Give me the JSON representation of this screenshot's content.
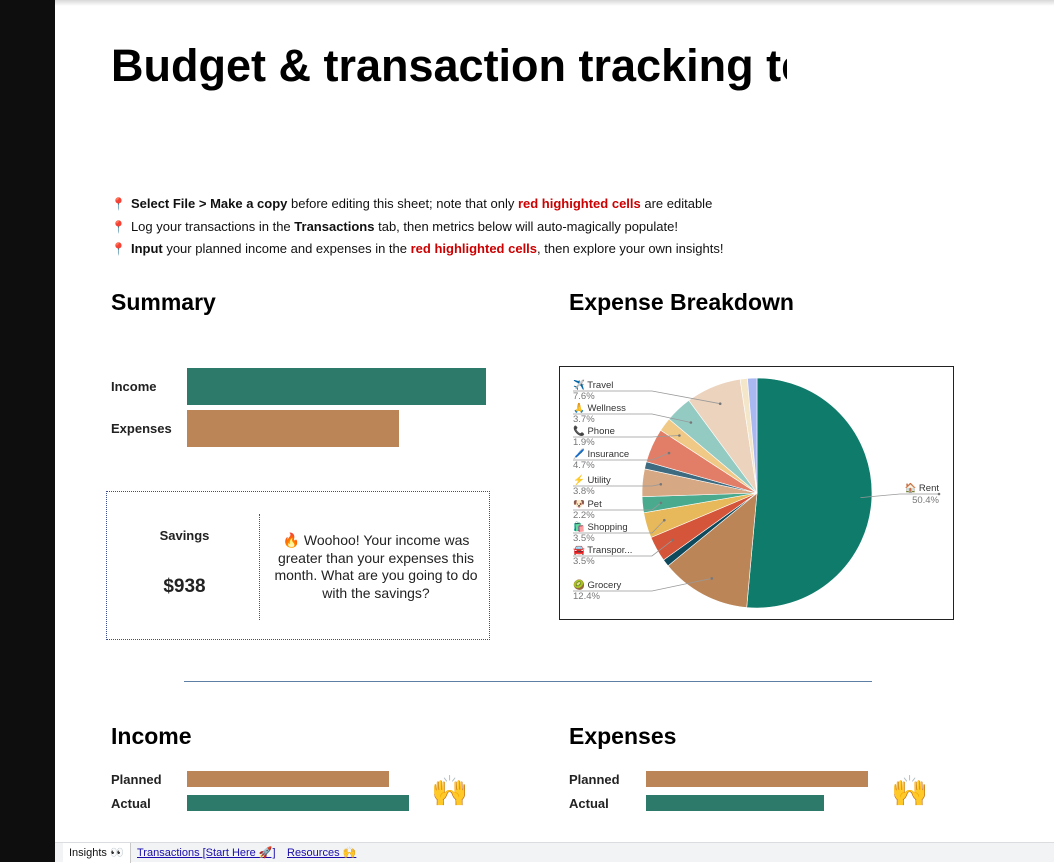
{
  "page": {
    "title": "Budget & transaction tracking template"
  },
  "instructions": {
    "line1": {
      "pin": "📍",
      "bold1": "Select File > Make a copy",
      "text1": " before editing this sheet; note that only ",
      "red": "red highighted cells",
      "text2": " are editable"
    },
    "line2": {
      "pin": "📍",
      "text1": "Log your transactions in the ",
      "bold": "Transactions",
      "text2": " tab, then metrics below will auto-magically populate!"
    },
    "line3": {
      "pin": "📍",
      "bold": "Input",
      "text1": " your planned income and expenses in the ",
      "red": "red highlighted cells",
      "text2": ", then explore your own insights!"
    }
  },
  "summary": {
    "heading": "Summary",
    "income_label": "Income",
    "expenses_label": "Expenses",
    "income_fraction": 1.0,
    "expenses_fraction": 0.71
  },
  "savings": {
    "label": "Savings",
    "value": "$938",
    "message": "🔥 Woohoo! Your income was greater than your expenses this month. What are you going to do with the savings?"
  },
  "expense_breakdown": {
    "heading": "Expense Breakdown"
  },
  "chart_data": {
    "type": "pie",
    "title": "",
    "slices": [
      {
        "label": "🏠 Rent",
        "value": 50.4,
        "pct_label": "50.4%",
        "color": "#0e7b6b"
      },
      {
        "label": "🥝 Grocery",
        "value": 12.4,
        "pct_label": "12.4%",
        "color": "#bb8558"
      },
      {
        "label": "",
        "value": 1.0,
        "pct_label": "",
        "color": "#0f4a5c"
      },
      {
        "label": "🚘 Transpor...",
        "value": 3.5,
        "pct_label": "3.5%",
        "color": "#d4553a"
      },
      {
        "label": "🛍️ Shopping",
        "value": 3.5,
        "pct_label": "3.5%",
        "color": "#e8b95a"
      },
      {
        "label": "🐶 Pet",
        "value": 2.2,
        "pct_label": "2.2%",
        "color": "#4aaa8e"
      },
      {
        "label": "⚡ Utility",
        "value": 3.8,
        "pct_label": "3.8%",
        "color": "#d6a883"
      },
      {
        "label": "",
        "value": 1.0,
        "pct_label": "",
        "color": "#3e6b80"
      },
      {
        "label": "🖊️ Insurance",
        "value": 4.7,
        "pct_label": "4.7%",
        "color": "#e27e67"
      },
      {
        "label": "📞 Phone",
        "value": 1.9,
        "pct_label": "1.9%",
        "color": "#f0c987"
      },
      {
        "label": "🙏 Wellness",
        "value": 3.7,
        "pct_label": "3.7%",
        "color": "#93cbc3"
      },
      {
        "label": "✈️ Travel",
        "value": 7.6,
        "pct_label": "7.6%",
        "color": "#ecd3bd"
      },
      {
        "label": "",
        "value": 1.0,
        "pct_label": "",
        "color": "#f4e6c9"
      },
      {
        "label": "",
        "value": 1.3,
        "pct_label": "",
        "color": "#aab8f2"
      }
    ],
    "legend": "labels-left"
  },
  "income_section": {
    "heading": "Income",
    "planned_label": "Planned",
    "actual_label": "Actual",
    "planned_fraction": 0.91,
    "actual_fraction": 1.0,
    "emoji": "🙌"
  },
  "expenses_section": {
    "heading": "Expenses",
    "planned_label": "Planned",
    "actual_label": "Actual",
    "planned_fraction": 1.0,
    "actual_fraction": 0.8,
    "emoji": "🙌"
  },
  "tabs": [
    {
      "label": "Insights 👀",
      "active": true
    },
    {
      "label": "Transactions [Start Here 🚀]",
      "active": false
    },
    {
      "label": "Resources 🙌",
      "active": false
    }
  ],
  "colors": {
    "teal": "#2e7a6a",
    "tan": "#bb8558",
    "red_highlight": "#cc0000"
  }
}
